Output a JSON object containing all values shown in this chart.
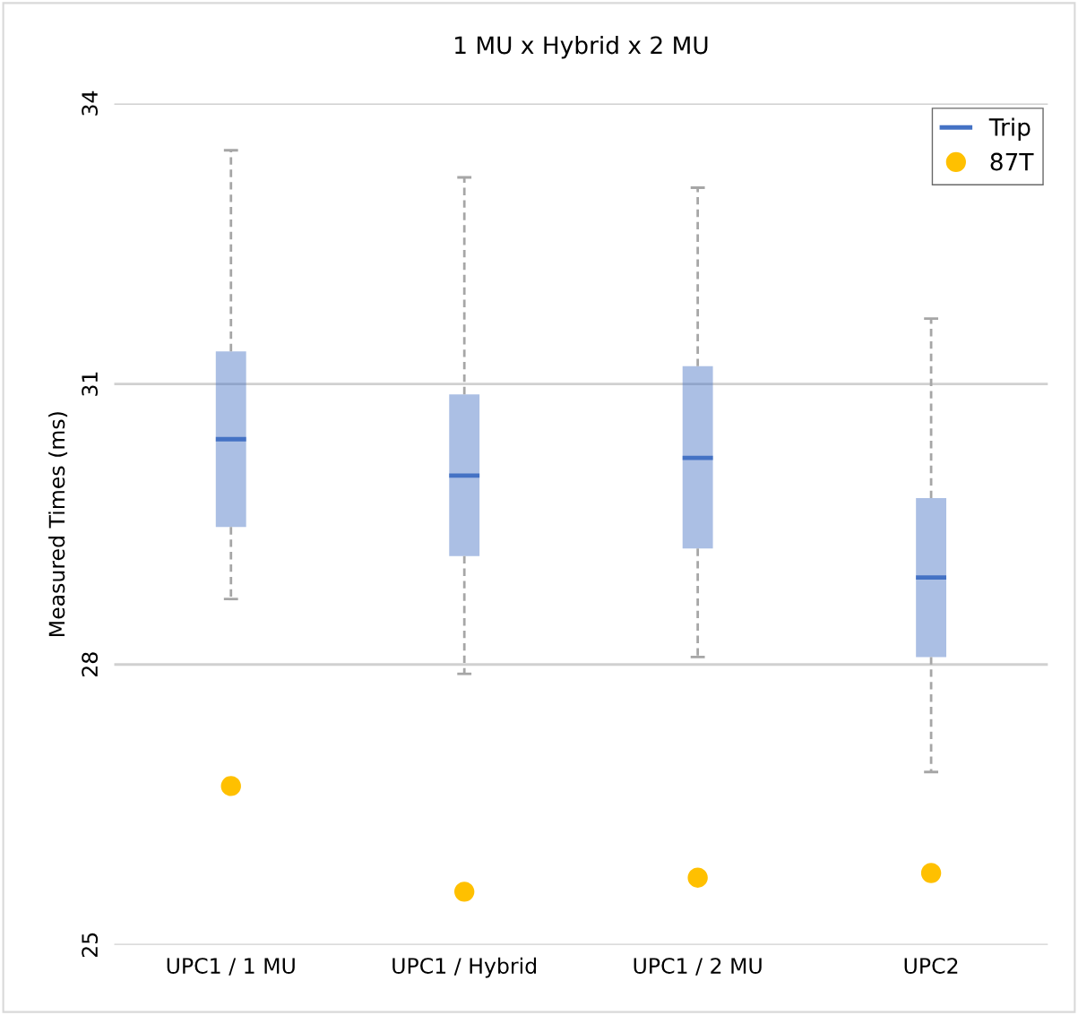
{
  "chart_data": {
    "type": "box",
    "title": "1 MU x Hybrid x 2 MU",
    "ylabel": "Measured Times (ms)",
    "categories": [
      "UPC1 / 1 MU",
      "UPC1 / Hybrid",
      "UPC1 / 2 MU",
      "UPC2"
    ],
    "ylim": [
      25,
      34
    ],
    "yticks": [
      25,
      28,
      31,
      34
    ],
    "grid": "y",
    "legend": "top right",
    "series": [
      {
        "name": "Trip",
        "color": "#4472c4",
        "boxes": [
          {
            "low": 28.7,
            "q1": 29.47,
            "median": 30.41,
            "q3": 31.35,
            "high": 33.5
          },
          {
            "low": 27.9,
            "q1": 29.16,
            "median": 30.02,
            "q3": 30.89,
            "high": 33.21
          },
          {
            "low": 28.08,
            "q1": 29.24,
            "median": 30.21,
            "q3": 31.19,
            "high": 33.1
          },
          {
            "low": 26.85,
            "q1": 28.08,
            "median": 28.93,
            "q3": 29.78,
            "high": 31.7
          }
        ]
      },
      {
        "name": "87T",
        "type": "scatter",
        "color": "#ffc000",
        "marker": "circle",
        "x": [
          "UPC1 / 1 MU",
          "UPC1 / Hybrid",
          "UPC1 / 2 MU",
          "UPC2"
        ],
        "values": [
          26.7,
          25.57,
          25.72,
          25.77
        ]
      }
    ]
  }
}
